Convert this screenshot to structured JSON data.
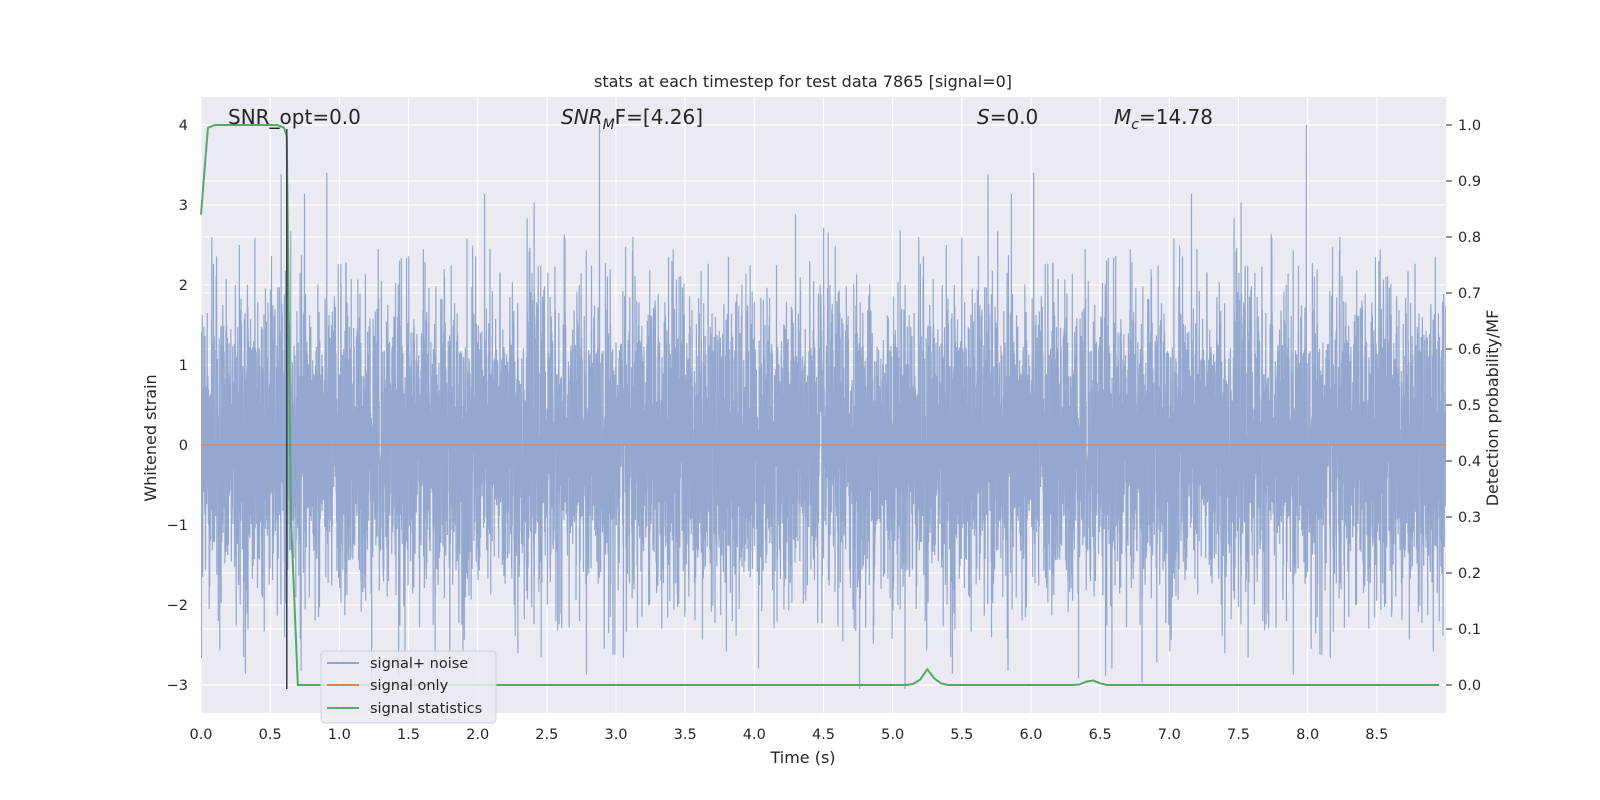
{
  "chart_data": {
    "type": "line",
    "title": "stats at each timestep for test data 7865 [signal=0]",
    "xlabel": "Time (s)",
    "ylabel": "Whitened strain",
    "ylabel_right": "Detection probability/MF",
    "xlim": [
      0.0,
      9.0
    ],
    "ylim": [
      -3.35,
      4.35
    ],
    "ylim_right": [
      -0.05,
      1.05
    ],
    "x_ticks": [
      "0.0",
      "0.5",
      "1.0",
      "1.5",
      "2.0",
      "2.5",
      "3.0",
      "3.5",
      "4.0",
      "4.5",
      "5.0",
      "5.5",
      "6.0",
      "6.5",
      "7.0",
      "7.5",
      "8.0",
      "8.5"
    ],
    "y_ticks": [
      "−3",
      "−2",
      "−1",
      "0",
      "1",
      "2",
      "3",
      "4"
    ],
    "y_ticks_right": [
      "0.0",
      "0.1",
      "0.2",
      "0.3",
      "0.4",
      "0.5",
      "0.6",
      "0.7",
      "0.8",
      "0.9",
      "1.0"
    ],
    "grid": true,
    "legend_position": "lower-left",
    "annotations": {
      "snr_opt": "SNR_opt=0.0",
      "snr_mf_base": "SNR",
      "snr_mf_sub": "M",
      "snr_mf_suffix": "F=[4.26]",
      "s_sym": "S",
      "s_val": "=0.0",
      "mc_sym": "M",
      "mc_sub": "c",
      "mc_val": "=14.78"
    },
    "series": [
      {
        "name": "signal+ noise",
        "color": "#8fa4cc",
        "note_range": [
          -3.05,
          4.0
        ],
        "sample_rate_hz": 1024
      },
      {
        "name": "signal only",
        "color": "#dd8452",
        "x": [
          0.0,
          9.0
        ],
        "y": [
          0.0,
          0.0
        ]
      },
      {
        "name": "signal statistics",
        "color": "#55a868",
        "axis": "right",
        "x": [
          0.0,
          0.05,
          0.1,
          0.15,
          0.2,
          0.25,
          0.3,
          0.35,
          0.4,
          0.45,
          0.5,
          0.55,
          0.6,
          0.62,
          0.65,
          0.7,
          0.75,
          1.0,
          2.0,
          3.0,
          4.0,
          5.0,
          5.1,
          5.15,
          5.2,
          5.25,
          5.3,
          5.35,
          5.4,
          5.5,
          6.0,
          6.3,
          6.35,
          6.4,
          6.45,
          6.5,
          6.55,
          7.0,
          8.0,
          8.95
        ],
        "y": [
          0.84,
          0.995,
          1.0,
          1.0,
          1.0,
          1.0,
          1.0,
          1.0,
          1.0,
          1.0,
          1.0,
          1.0,
          0.995,
          0.98,
          0.3,
          0.0,
          0.0,
          0.0,
          0.0,
          0.0,
          0.0,
          0.0,
          0.0,
          0.002,
          0.01,
          0.028,
          0.012,
          0.003,
          0.0,
          0.0,
          0.0,
          0.0,
          0.001,
          0.006,
          0.008,
          0.003,
          0.0,
          0.0,
          0.0,
          0.0
        ]
      }
    ],
    "marker_line": {
      "x": 0.62,
      "y_top": 3.95,
      "y_bottom": -3.05,
      "color": "#3a3a4a"
    },
    "colors": {
      "background": "#eaeaf2",
      "grid": "#ffffff",
      "text": "#262626"
    }
  }
}
